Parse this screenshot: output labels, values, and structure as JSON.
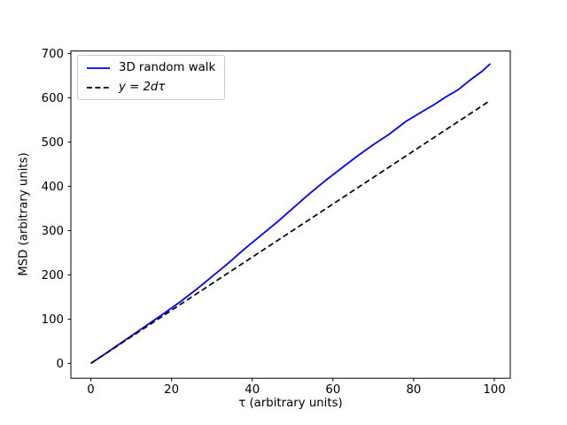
{
  "figure": {
    "background": "#ffffff",
    "text_color": "#000000",
    "spine_color": "#000000"
  },
  "chart_data": {
    "type": "line",
    "title": "",
    "xlabel": "τ (arbitrary units)",
    "ylabel": "MSD (arbitrary units)",
    "xlim": [
      -4.95,
      103.95
    ],
    "ylim": [
      -33.6,
      705.6
    ],
    "x_ticks": [
      0,
      20,
      40,
      60,
      80,
      100
    ],
    "y_ticks": [
      0,
      100,
      200,
      300,
      400,
      500,
      600,
      700
    ],
    "grid": false,
    "legend_position": "upper left",
    "series": [
      {
        "name": "3D random walk",
        "color": "#0000ff",
        "style": "solid",
        "x": [
          0,
          3,
          6,
          10,
          14,
          18,
          22,
          26,
          30,
          34,
          38,
          42,
          46,
          50,
          54,
          58,
          62,
          66,
          70,
          74,
          78,
          82,
          85,
          88,
          91,
          94,
          97,
          99
        ],
        "y": [
          0,
          18,
          37,
          62,
          87,
          112,
          138,
          166,
          196,
          226,
          258,
          288,
          318,
          350,
          382,
          412,
          440,
          468,
          494,
          518,
          546,
          568,
          584,
          602,
          618,
          640,
          660,
          677
        ]
      },
      {
        "name": "y = 2dτ",
        "color": "#000000",
        "style": "dashed",
        "x": [
          0,
          99
        ],
        "y": [
          0,
          594
        ]
      }
    ]
  }
}
